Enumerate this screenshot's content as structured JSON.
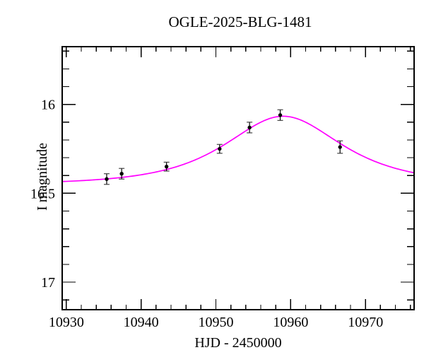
{
  "page": {
    "background_color": "#ffffff",
    "frame_color": "#000000"
  },
  "chart_data": {
    "type": "scatter",
    "title": "OGLE-2025-BLG-1481",
    "xlabel": "HJD - 2450000",
    "ylabel": "I magnitude",
    "x_range": [
      10929.45,
      10976.5
    ],
    "y_range": [
      15.675,
      17.155
    ],
    "y_axis_inverted_magnitudes": true,
    "grid": false,
    "legend": "none",
    "x_major_ticks": [
      10930,
      10940,
      10950,
      10960,
      10970
    ],
    "x_minor_tick_step": 2,
    "y_major_ticks": [
      16,
      16.5,
      17
    ],
    "y_minor_tick_step": 0.1,
    "curve_color": "#ff00ff",
    "point_color": "#000000",
    "points": [
      {
        "t": 10935.4,
        "mag": 16.42,
        "err": 0.03
      },
      {
        "t": 10937.4,
        "mag": 16.39,
        "err": 0.03
      },
      {
        "t": 10943.4,
        "mag": 16.35,
        "err": 0.025
      },
      {
        "t": 10950.5,
        "mag": 16.25,
        "err": 0.025
      },
      {
        "t": 10954.5,
        "mag": 16.13,
        "err": 0.03
      },
      {
        "t": 10958.6,
        "mag": 16.06,
        "err": 0.03
      },
      {
        "t": 10966.6,
        "mag": 16.24,
        "err": 0.035
      }
    ],
    "model_curve": {
      "type": "paczynski",
      "t0": 10959.0,
      "tE": 9.9,
      "u0": 0.9,
      "baseline_mag": 16.45,
      "peak_mag": 16.07
    }
  }
}
